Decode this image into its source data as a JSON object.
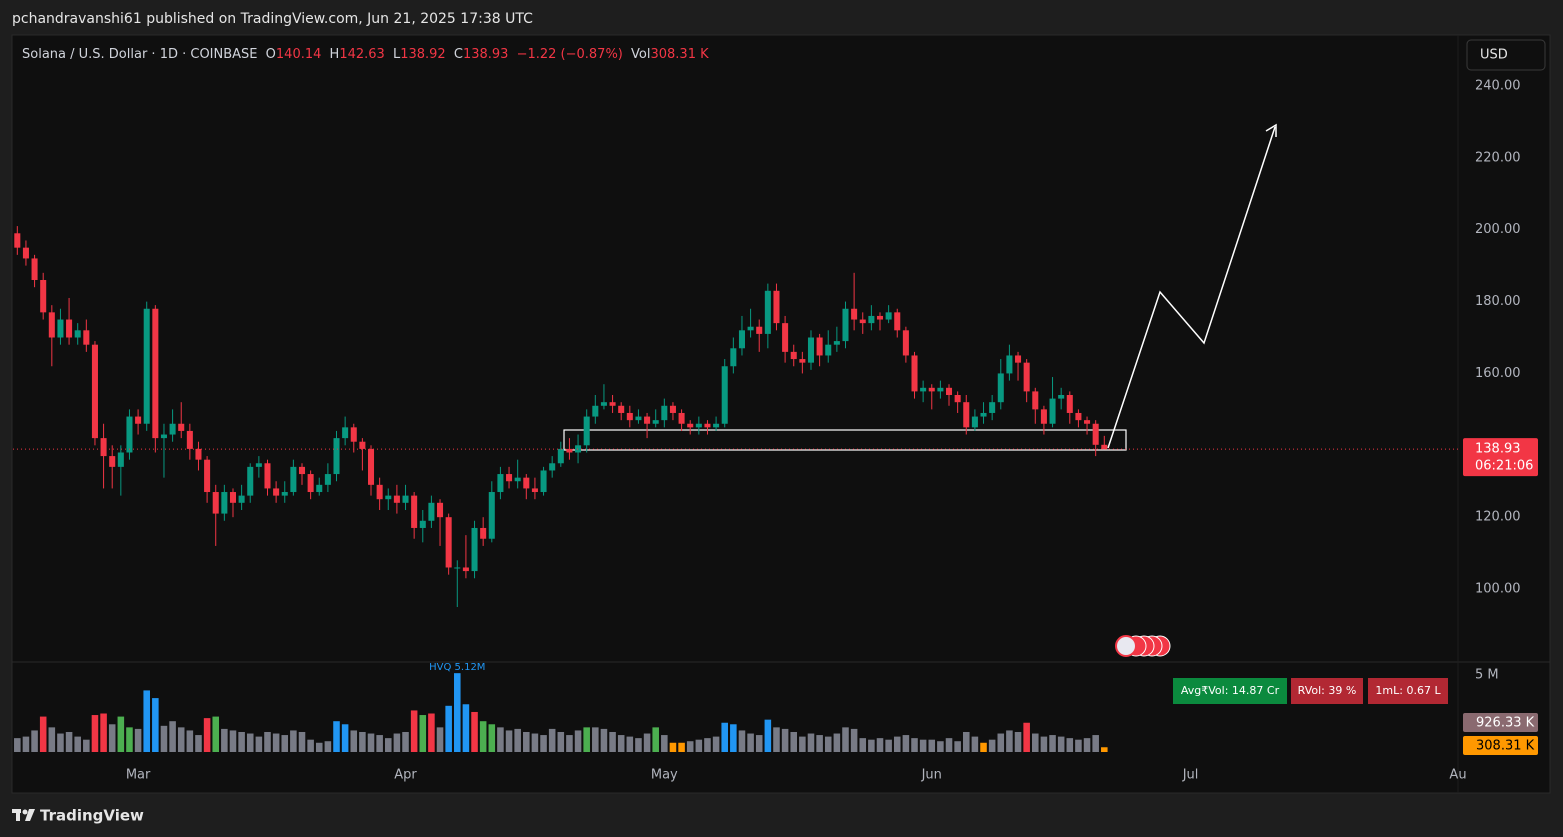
{
  "header": {
    "text": "pchandravanshi61 published on TradingView.com, Jun 21, 2025 17:38 UTC"
  },
  "footer": {
    "brand": "TradingView"
  },
  "chart_data": [
    {
      "type": "candlestick",
      "title": "Solana / U.S. Dollar · 1D · COINBASE",
      "legend_keys": [
        "O",
        "H",
        "L",
        "C"
      ],
      "change_label": "−1.22 (−0.87%)",
      "volume_key": "Vol",
      "currency": "USD",
      "countdown": "06:21:06",
      "up_color": "#089981",
      "down_color": "#f23645",
      "open": [
        199,
        195,
        192,
        186,
        177,
        170,
        175,
        170,
        172,
        168,
        142,
        137,
        134,
        138,
        148,
        146,
        178,
        142,
        143,
        146,
        144,
        139,
        136,
        127,
        121,
        127,
        124,
        126,
        134,
        135,
        128,
        126,
        127,
        134,
        132,
        127,
        129,
        132,
        142,
        145,
        141,
        139,
        129,
        125,
        126,
        124,
        126,
        117,
        119,
        124,
        120,
        106,
        106,
        105,
        117,
        114,
        127,
        132,
        130,
        131,
        128,
        127,
        133,
        135,
        139,
        138,
        140,
        148,
        151,
        152,
        151,
        149,
        147,
        148,
        146,
        147,
        151,
        149,
        146,
        145,
        146,
        145,
        146,
        162,
        167,
        172,
        173,
        171,
        183,
        174,
        166,
        164,
        163,
        170,
        165,
        168,
        169,
        178,
        175,
        174,
        176,
        175,
        177,
        172,
        165,
        155,
        156,
        155,
        156,
        154,
        152,
        145,
        148,
        149,
        152,
        160,
        165,
        163,
        155,
        150,
        146,
        153,
        154,
        149,
        147,
        146,
        140.14
      ],
      "high": [
        201,
        197,
        193,
        188,
        179,
        178,
        181,
        174,
        175,
        169,
        146,
        140,
        140,
        150,
        150,
        180,
        179,
        146,
        150,
        152,
        146,
        141,
        137,
        129,
        129,
        128,
        129,
        135,
        137,
        136,
        130,
        130,
        136,
        135,
        133,
        131,
        135,
        144,
        148,
        146,
        142,
        140,
        131,
        128,
        129,
        129,
        127,
        122,
        126,
        125,
        121,
        108,
        115,
        119,
        120,
        130,
        134,
        134,
        136,
        132,
        131,
        134,
        137,
        141,
        142,
        143,
        150,
        154,
        157,
        154,
        152,
        151,
        150,
        149,
        150,
        153,
        152,
        150,
        147,
        148,
        147,
        148,
        164,
        170,
        176,
        178,
        175,
        185,
        185,
        176,
        168,
        166,
        172,
        171,
        172,
        173,
        180,
        188,
        177,
        179,
        177,
        179,
        178,
        173,
        166,
        158,
        157,
        158,
        157,
        155,
        154,
        150,
        152,
        154,
        164,
        168,
        166,
        164,
        156,
        151,
        159,
        156,
        155,
        150,
        148,
        147,
        142.63
      ],
      "low": [
        193,
        190,
        184,
        175,
        162,
        168,
        168,
        168,
        166,
        140,
        128,
        128,
        126,
        136,
        143,
        144,
        138,
        131,
        141,
        142,
        136,
        133,
        124,
        112,
        119,
        120,
        122,
        124,
        131,
        126,
        124,
        124,
        126,
        129,
        125,
        126,
        127,
        130,
        140,
        138,
        133,
        126,
        122,
        122,
        121,
        122,
        114,
        113,
        117,
        112,
        104,
        95,
        103,
        103,
        112,
        113,
        125,
        128,
        128,
        125,
        125,
        126,
        131,
        134,
        136,
        135,
        138,
        146,
        150,
        149,
        147,
        145,
        146,
        142,
        145,
        145,
        147,
        144,
        143,
        143,
        143,
        144,
        145,
        160,
        165,
        170,
        166,
        167,
        172,
        163,
        162,
        160,
        161,
        162,
        163,
        166,
        167,
        172,
        171,
        172,
        172,
        174,
        170,
        163,
        153,
        152,
        150,
        153,
        151,
        149,
        143,
        144,
        146,
        147,
        150,
        158,
        158,
        152,
        146,
        143,
        145,
        150,
        146,
        145,
        143,
        137,
        138.92
      ],
      "close": [
        195,
        192,
        186,
        177,
        170,
        175,
        170,
        172,
        168,
        142,
        137,
        134,
        138,
        148,
        146,
        178,
        142,
        143,
        146,
        144,
        139,
        136,
        127,
        121,
        127,
        124,
        126,
        134,
        135,
        128,
        126,
        127,
        134,
        132,
        127,
        129,
        132,
        142,
        145,
        141,
        139,
        129,
        125,
        126,
        124,
        126,
        117,
        119,
        124,
        120,
        106,
        106,
        105,
        117,
        114,
        127,
        132,
        130,
        131,
        128,
        127,
        133,
        135,
        139,
        138,
        140,
        148,
        151,
        152,
        151,
        149,
        147,
        148,
        146,
        147,
        151,
        149,
        146,
        145,
        146,
        145,
        146,
        162,
        167,
        172,
        173,
        171,
        183,
        174,
        166,
        164,
        163,
        170,
        165,
        168,
        169,
        178,
        175,
        174,
        176,
        175,
        177,
        172,
        165,
        155,
        156,
        155,
        156,
        154,
        152,
        145,
        148,
        149,
        152,
        160,
        165,
        163,
        155,
        150,
        146,
        153,
        154,
        149,
        147,
        146,
        140.14,
        138.93
      ],
      "xlim": [
        -0.5,
        167
      ],
      "xticks": [
        {
          "value": 14,
          "label": "Mar"
        },
        {
          "value": 45,
          "label": "Apr"
        },
        {
          "value": 75,
          "label": "May"
        },
        {
          "value": 106,
          "label": "Jun"
        },
        {
          "value": 136,
          "label": "Jul"
        },
        {
          "value": 167,
          "label": "Au"
        }
      ],
      "ylim": [
        79.7,
        253.9
      ],
      "yticks": [
        {
          "value": 100,
          "label": "100.00"
        },
        {
          "value": 120,
          "label": "120.00"
        },
        {
          "value": 140,
          "label": "140.00"
        },
        {
          "value": 160,
          "label": "160.00"
        },
        {
          "value": 180,
          "label": "180.00"
        },
        {
          "value": 200,
          "label": "200.00"
        },
        {
          "value": 220,
          "label": "220.00"
        },
        {
          "value": 240,
          "label": "240.00"
        }
      ]
    },
    {
      "type": "bar",
      "values": [
        900000,
        1000000,
        1400000,
        2300000,
        1600000,
        1200000,
        1300000,
        1000000,
        800000,
        2400000,
        2500000,
        1800000,
        2300000,
        1600000,
        1500000,
        4000000,
        3500000,
        1700000,
        2000000,
        1600000,
        1400000,
        1100000,
        2200000,
        2300000,
        1500000,
        1400000,
        1300000,
        1200000,
        1000000,
        1300000,
        1200000,
        1100000,
        1400000,
        1300000,
        800000,
        600000,
        700000,
        2000000,
        1800000,
        1400000,
        1300000,
        1200000,
        1100000,
        900000,
        1200000,
        1300000,
        2700000,
        2400000,
        2500000,
        1600000,
        3000000,
        5120000,
        3100000,
        2600000,
        2000000,
        1800000,
        1600000,
        1400000,
        1500000,
        1300000,
        1200000,
        1100000,
        1500000,
        1300000,
        1100000,
        1400000,
        1600000,
        1600000,
        1500000,
        1300000,
        1100000,
        1000000,
        900000,
        1200000,
        1600000,
        1100000,
        600000,
        600000,
        700000,
        800000,
        900000,
        1000000,
        1900000,
        1800000,
        1400000,
        1200000,
        1100000,
        2100000,
        1600000,
        1500000,
        1300000,
        1000000,
        1200000,
        1100000,
        1000000,
        1200000,
        1600000,
        1500000,
        900000,
        800000,
        900000,
        800000,
        1000000,
        1100000,
        900000,
        800000,
        800000,
        700000,
        900000,
        700000,
        1300000,
        1000000,
        600000,
        800000,
        1200000,
        1400000,
        1300000,
        1900000,
        1200000,
        1000000,
        1100000,
        1000000,
        900000,
        800000,
        900000,
        1100000,
        308310
      ],
      "value_labels": [
        null,
        null,
        null,
        null,
        null,
        null,
        null,
        null,
        null,
        null,
        null,
        null,
        null,
        null,
        null,
        null,
        null,
        null,
        null,
        null,
        null,
        null,
        null,
        null,
        null,
        null,
        null,
        null,
        null,
        null,
        null,
        null,
        null,
        null,
        null,
        null,
        null,
        null,
        null,
        null,
        null,
        null,
        null,
        null,
        null,
        null,
        null,
        null,
        null,
        null,
        null,
        "HVQ 5.12M",
        null,
        null,
        null,
        null,
        null,
        null,
        null,
        null,
        null,
        null,
        null,
        null,
        null,
        null,
        null,
        null,
        null,
        null,
        null,
        null,
        null,
        null,
        null,
        null,
        null,
        null,
        null,
        null,
        null,
        null,
        null,
        null,
        null,
        null,
        null,
        null,
        null,
        null,
        null,
        null,
        null,
        null,
        null,
        null,
        null,
        null,
        null,
        null,
        null,
        null,
        null,
        null,
        null,
        null,
        null,
        null,
        null,
        null,
        null,
        null,
        null,
        null,
        null,
        null,
        null,
        null,
        null,
        null,
        null,
        null,
        null,
        null,
        null,
        null,
        "308.31 K"
      ],
      "colors": [
        "#787b86",
        "#787b86",
        "#787b86",
        "#f23645",
        "#787b86",
        "#787b86",
        "#787b86",
        "#787b86",
        "#787b86",
        "#f23645",
        "#f23645",
        "#787b86",
        "#4caf50",
        "#4caf50",
        "#787b86",
        "#2196f3",
        "#2196f3",
        "#787b86",
        "#787b86",
        "#787b86",
        "#787b86",
        "#787b86",
        "#f23645",
        "#4caf50",
        "#787b86",
        "#787b86",
        "#787b86",
        "#787b86",
        "#787b86",
        "#787b86",
        "#787b86",
        "#787b86",
        "#787b86",
        "#787b86",
        "#787b86",
        "#787b86",
        "#787b86",
        "#2196f3",
        "#2196f3",
        "#787b86",
        "#787b86",
        "#787b86",
        "#787b86",
        "#787b86",
        "#787b86",
        "#787b86",
        "#f23645",
        "#4caf50",
        "#f23645",
        "#787b86",
        "#2196f3",
        "#2196f3",
        "#2196f3",
        "#f23645",
        "#4caf50",
        "#4caf50",
        "#787b86",
        "#787b86",
        "#787b86",
        "#787b86",
        "#787b86",
        "#787b86",
        "#787b86",
        "#787b86",
        "#787b86",
        "#787b86",
        "#4caf50",
        "#787b86",
        "#787b86",
        "#787b86",
        "#787b86",
        "#787b86",
        "#787b86",
        "#787b86",
        "#4caf50",
        "#787b86",
        "#ff9800",
        "#ff9800",
        "#787b86",
        "#787b86",
        "#787b86",
        "#787b86",
        "#2196f3",
        "#2196f3",
        "#787b86",
        "#787b86",
        "#787b86",
        "#2196f3",
        "#787b86",
        "#787b86",
        "#787b86",
        "#787b86",
        "#787b86",
        "#787b86",
        "#787b86",
        "#787b86",
        "#787b86",
        "#787b86",
        "#787b86",
        "#787b86",
        "#787b86",
        "#787b86",
        "#787b86",
        "#787b86",
        "#787b86",
        "#787b86",
        "#787b86",
        "#787b86",
        "#787b86",
        "#787b86",
        "#787b86",
        "#787b86",
        "#ff9800",
        "#787b86",
        "#787b86",
        "#787b86",
        "#787b86",
        "#f23645",
        "#787b86",
        "#787b86",
        "#787b86",
        "#787b86",
        "#787b86",
        "#787b86",
        "#787b86",
        "#787b86",
        "#ff9800"
      ],
      "ylim": [
        0,
        5780000
      ],
      "yticks": [
        {
          "value": 5000000,
          "label": "5 M"
        }
      ],
      "moving_average": {
        "value": 926330,
        "label": "926.33 K"
      },
      "badges": [
        "Avg₹Vol: 14.87 Cr",
        "RVol: 39 %",
        "1mL: 0.67 L"
      ]
    }
  ]
}
